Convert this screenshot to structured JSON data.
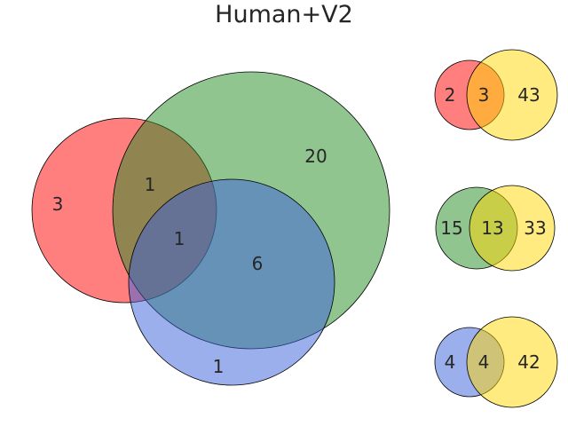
{
  "title": "Human+V2",
  "colors": {
    "red": "#ff0000",
    "green": "#228b22",
    "blue": "#3a5fdc",
    "yellow": "#ffd700",
    "outline": "#000000",
    "text": "#262626"
  },
  "main_venn": {
    "regions": {
      "red_only": "3",
      "red_green": "1",
      "red_green_blue": "1",
      "green_only": "20",
      "green_blue": "6",
      "blue_only": "1"
    }
  },
  "pair_venns": [
    {
      "color_name": "red",
      "left": "2",
      "overlap": "3",
      "right": "43"
    },
    {
      "color_name": "green",
      "left": "15",
      "overlap": "13",
      "right": "33"
    },
    {
      "color_name": "blue",
      "left": "4",
      "overlap": "4",
      "right": "42"
    }
  ]
}
